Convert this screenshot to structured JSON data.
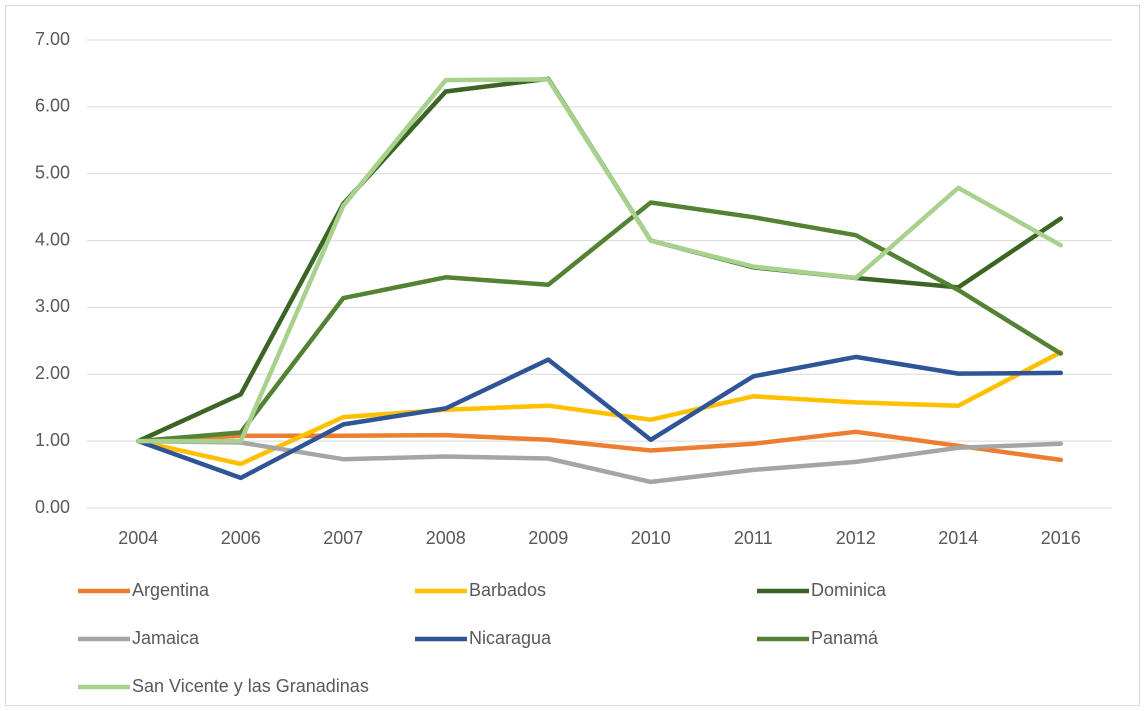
{
  "chart_data": {
    "type": "line",
    "categories": [
      "2004",
      "2006",
      "2007",
      "2008",
      "2009",
      "2010",
      "2011",
      "2012",
      "2014",
      "2016"
    ],
    "series": [
      {
        "name": "Argentina",
        "color": "#ed7d31",
        "values": [
          1.0,
          1.08,
          1.08,
          1.09,
          1.02,
          0.86,
          0.96,
          1.14,
          0.93,
          0.72
        ]
      },
      {
        "name": "Barbados",
        "color": "#ffc000",
        "values": [
          1.0,
          0.66,
          1.36,
          1.47,
          1.53,
          1.32,
          1.67,
          1.58,
          1.53,
          2.33
        ]
      },
      {
        "name": "Dominica",
        "color": "#3b6425",
        "values": [
          1.0,
          1.7,
          4.55,
          6.23,
          6.42,
          4.0,
          3.6,
          3.44,
          3.3,
          4.33
        ]
      },
      {
        "name": "Jamaica",
        "color": "#a5a5a5",
        "values": [
          1.0,
          0.98,
          0.73,
          0.77,
          0.74,
          0.39,
          0.57,
          0.69,
          0.9,
          0.96
        ]
      },
      {
        "name": "Nicaragua",
        "color": "#2f5597",
        "values": [
          1.0,
          0.45,
          1.25,
          1.49,
          2.22,
          1.02,
          1.97,
          2.26,
          2.01,
          2.02
        ]
      },
      {
        "name": "Panamá",
        "color": "#548235",
        "values": [
          1.0,
          1.13,
          3.14,
          3.45,
          3.34,
          4.57,
          4.35,
          4.08,
          3.26,
          2.31
        ]
      },
      {
        "name": "San Vicente y las Granadinas",
        "color": "#a9d18e",
        "values": [
          1.0,
          1.0,
          4.52,
          6.4,
          6.41,
          4.0,
          3.61,
          3.44,
          4.79,
          3.93
        ]
      }
    ],
    "ylim": [
      0,
      7
    ],
    "yticks": [
      {
        "value": 0,
        "label": "0.00"
      },
      {
        "value": 1,
        "label": "1.00"
      },
      {
        "value": 2,
        "label": "2.00"
      },
      {
        "value": 3,
        "label": "3.00"
      },
      {
        "value": 4,
        "label": "4.00"
      },
      {
        "value": 5,
        "label": "5.00"
      },
      {
        "value": 6,
        "label": "6.00"
      },
      {
        "value": 7,
        "label": "7.00"
      }
    ],
    "grid": true,
    "legend": "bottom"
  }
}
